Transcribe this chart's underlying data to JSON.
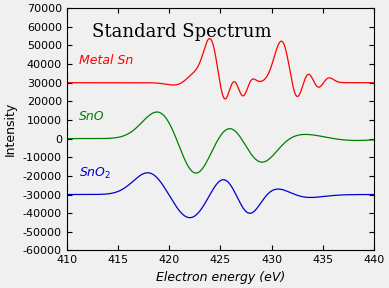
{
  "title": "Standard Spectrum",
  "xlabel": "Electron energy (eV)",
  "ylabel": "Intensity",
  "xlim": [
    410,
    440
  ],
  "ylim": [
    -60000,
    70000
  ],
  "yticks": [
    -60000,
    -50000,
    -40000,
    -30000,
    -20000,
    -10000,
    0,
    10000,
    20000,
    30000,
    40000,
    50000,
    60000,
    70000
  ],
  "xticks": [
    410,
    415,
    420,
    425,
    430,
    435,
    440
  ],
  "colors": {
    "metal_sn": "#ff0000",
    "sno": "#008000",
    "sno2": "#0000cc"
  },
  "label_positions": {
    "metal_sn": [
      411.2,
      40000
    ],
    "sno": [
      411.2,
      10000
    ],
    "sno2": [
      411.2,
      -20500
    ]
  },
  "background_color": "#f0f0f0",
  "title_fontsize": 13,
  "label_fontsize": 9,
  "axis_fontsize": 9,
  "tick_fontsize": 8
}
